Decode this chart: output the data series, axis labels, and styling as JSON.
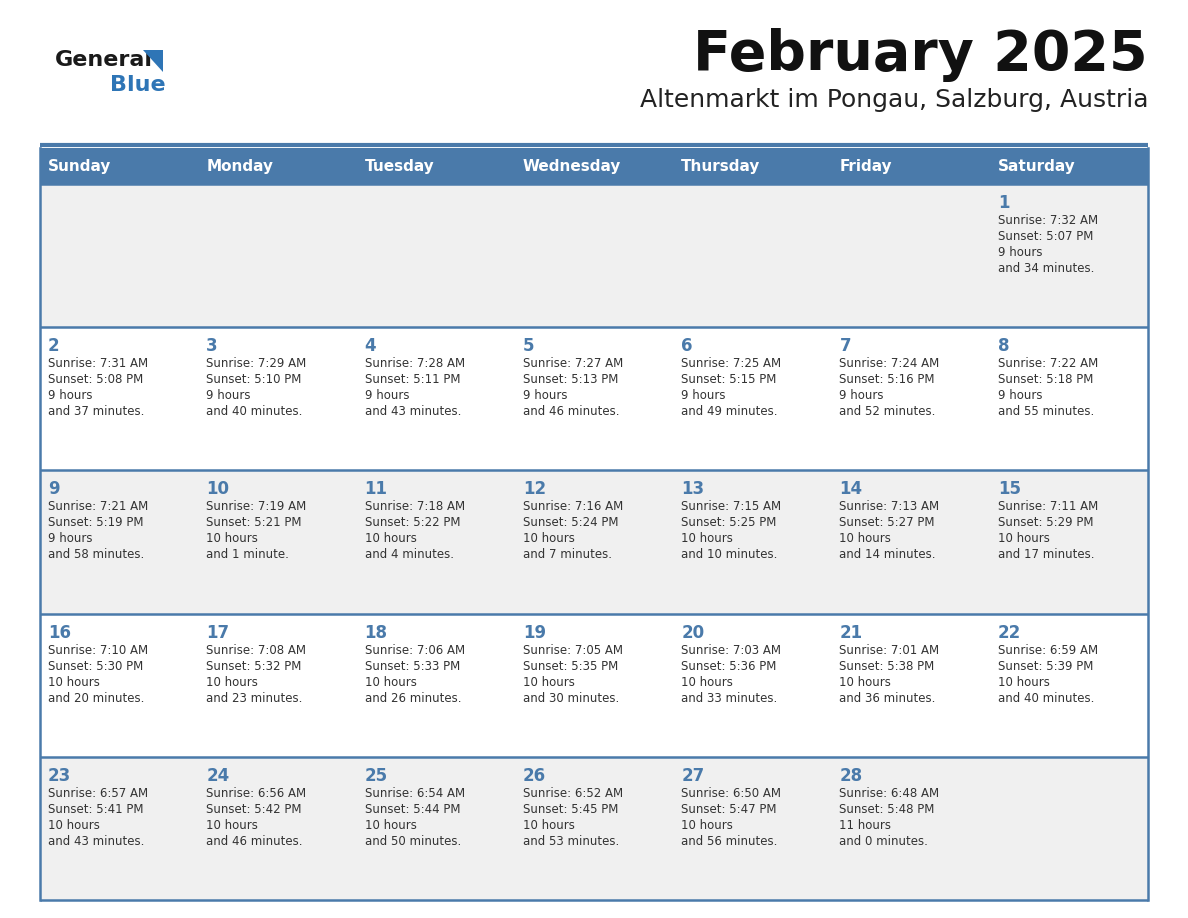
{
  "title": "February 2025",
  "subtitle": "Altenmarkt im Pongau, Salzburg, Austria",
  "days_of_week": [
    "Sunday",
    "Monday",
    "Tuesday",
    "Wednesday",
    "Thursday",
    "Friday",
    "Saturday"
  ],
  "header_bg": "#4a7aaa",
  "header_text": "#ffffff",
  "row_bg_odd": "#f0f0f0",
  "row_bg_even": "#ffffff",
  "separator_color": "#4a7aaa",
  "day_number_color": "#4a7aaa",
  "cell_text_color": "#333333",
  "logo_general_color": "#1a1a1a",
  "logo_blue_color": "#2e75b6",
  "calendar_data": [
    [
      null,
      null,
      null,
      null,
      null,
      null,
      {
        "day": "1",
        "sunrise": "7:32 AM",
        "sunset": "5:07 PM",
        "daylight": "9 hours\nand 34 minutes."
      }
    ],
    [
      {
        "day": "2",
        "sunrise": "7:31 AM",
        "sunset": "5:08 PM",
        "daylight": "9 hours\nand 37 minutes."
      },
      {
        "day": "3",
        "sunrise": "7:29 AM",
        "sunset": "5:10 PM",
        "daylight": "9 hours\nand 40 minutes."
      },
      {
        "day": "4",
        "sunrise": "7:28 AM",
        "sunset": "5:11 PM",
        "daylight": "9 hours\nand 43 minutes."
      },
      {
        "day": "5",
        "sunrise": "7:27 AM",
        "sunset": "5:13 PM",
        "daylight": "9 hours\nand 46 minutes."
      },
      {
        "day": "6",
        "sunrise": "7:25 AM",
        "sunset": "5:15 PM",
        "daylight": "9 hours\nand 49 minutes."
      },
      {
        "day": "7",
        "sunrise": "7:24 AM",
        "sunset": "5:16 PM",
        "daylight": "9 hours\nand 52 minutes."
      },
      {
        "day": "8",
        "sunrise": "7:22 AM",
        "sunset": "5:18 PM",
        "daylight": "9 hours\nand 55 minutes."
      }
    ],
    [
      {
        "day": "9",
        "sunrise": "7:21 AM",
        "sunset": "5:19 PM",
        "daylight": "9 hours\nand 58 minutes."
      },
      {
        "day": "10",
        "sunrise": "7:19 AM",
        "sunset": "5:21 PM",
        "daylight": "10 hours\nand 1 minute."
      },
      {
        "day": "11",
        "sunrise": "7:18 AM",
        "sunset": "5:22 PM",
        "daylight": "10 hours\nand 4 minutes."
      },
      {
        "day": "12",
        "sunrise": "7:16 AM",
        "sunset": "5:24 PM",
        "daylight": "10 hours\nand 7 minutes."
      },
      {
        "day": "13",
        "sunrise": "7:15 AM",
        "sunset": "5:25 PM",
        "daylight": "10 hours\nand 10 minutes."
      },
      {
        "day": "14",
        "sunrise": "7:13 AM",
        "sunset": "5:27 PM",
        "daylight": "10 hours\nand 14 minutes."
      },
      {
        "day": "15",
        "sunrise": "7:11 AM",
        "sunset": "5:29 PM",
        "daylight": "10 hours\nand 17 minutes."
      }
    ],
    [
      {
        "day": "16",
        "sunrise": "7:10 AM",
        "sunset": "5:30 PM",
        "daylight": "10 hours\nand 20 minutes."
      },
      {
        "day": "17",
        "sunrise": "7:08 AM",
        "sunset": "5:32 PM",
        "daylight": "10 hours\nand 23 minutes."
      },
      {
        "day": "18",
        "sunrise": "7:06 AM",
        "sunset": "5:33 PM",
        "daylight": "10 hours\nand 26 minutes."
      },
      {
        "day": "19",
        "sunrise": "7:05 AM",
        "sunset": "5:35 PM",
        "daylight": "10 hours\nand 30 minutes."
      },
      {
        "day": "20",
        "sunrise": "7:03 AM",
        "sunset": "5:36 PM",
        "daylight": "10 hours\nand 33 minutes."
      },
      {
        "day": "21",
        "sunrise": "7:01 AM",
        "sunset": "5:38 PM",
        "daylight": "10 hours\nand 36 minutes."
      },
      {
        "day": "22",
        "sunrise": "6:59 AM",
        "sunset": "5:39 PM",
        "daylight": "10 hours\nand 40 minutes."
      }
    ],
    [
      {
        "day": "23",
        "sunrise": "6:57 AM",
        "sunset": "5:41 PM",
        "daylight": "10 hours\nand 43 minutes."
      },
      {
        "day": "24",
        "sunrise": "6:56 AM",
        "sunset": "5:42 PM",
        "daylight": "10 hours\nand 46 minutes."
      },
      {
        "day": "25",
        "sunrise": "6:54 AM",
        "sunset": "5:44 PM",
        "daylight": "10 hours\nand 50 minutes."
      },
      {
        "day": "26",
        "sunrise": "6:52 AM",
        "sunset": "5:45 PM",
        "daylight": "10 hours\nand 53 minutes."
      },
      {
        "day": "27",
        "sunrise": "6:50 AM",
        "sunset": "5:47 PM",
        "daylight": "10 hours\nand 56 minutes."
      },
      {
        "day": "28",
        "sunrise": "6:48 AM",
        "sunset": "5:48 PM",
        "daylight": "11 hours\nand 0 minutes."
      },
      null
    ]
  ]
}
